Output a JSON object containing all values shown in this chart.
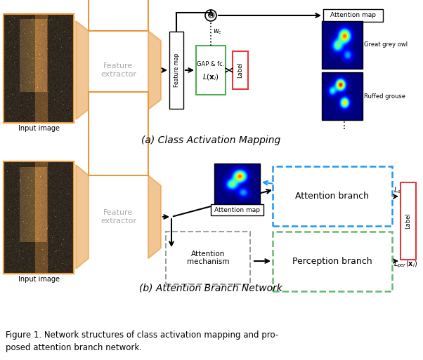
{
  "fig_width": 6.02,
  "fig_height": 5.13,
  "bg_color": "#ffffff",
  "section_a_title": "(a) Class Activation Mapping",
  "section_b_title": "(b) Attention Branch Network",
  "figure_caption_line1": "Figure 1. Network structures of class activation mapping and pro-",
  "figure_caption_line2": "posed attention branch network.",
  "orange_color": "#e8973a",
  "green_color": "#4caf50",
  "red_color": "#e53935",
  "blue_dashed_color": "#2196f3",
  "green_dashed_color": "#66bb6a",
  "gray_dashed_color": "#9e9e9e",
  "text_gray": "#aaaaaa"
}
